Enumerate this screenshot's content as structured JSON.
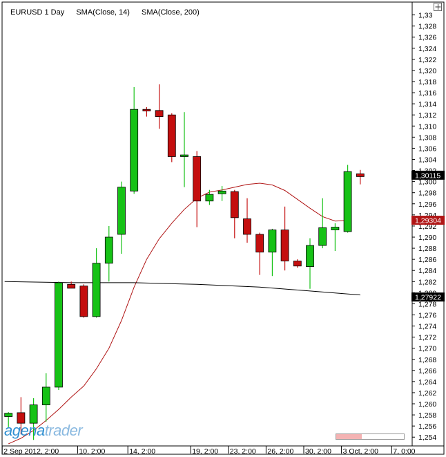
{
  "legend": {
    "instrument": "EURUSD 1 Day",
    "indicator1": "SMA(Close, 14)",
    "indicator2": "SMA(Close, 200)"
  },
  "logo": {
    "part1": "agena",
    "part2": "trader"
  },
  "scrollbar": {
    "position": 0.38
  },
  "colors": {
    "up": "#16c216",
    "down": "#c40e0e",
    "sma14": "#b01515",
    "sma200": "#000000",
    "grid": "#d9d9d9",
    "axis": "#000000"
  },
  "chart_data": {
    "type": "candlestick",
    "ylim": [
      1.2525,
      1.3305
    ],
    "y_ticks": [
      "1,254",
      "1,256",
      "1,258",
      "1,260",
      "1,262",
      "1,264",
      "1,266",
      "1,268",
      "1,270",
      "1,272",
      "1,274",
      "1,276",
      "1,278",
      "1,280",
      "1,282",
      "1,284",
      "1,286",
      "1,288",
      "1,290",
      "1,292",
      "1,294",
      "1,296",
      "1,298",
      "1,300",
      "1,302",
      "1,304",
      "1,306",
      "1,308",
      "1,310",
      "1,312",
      "1,314",
      "1,316",
      "1,318",
      "1,320",
      "1,322",
      "1,324",
      "1,326",
      "1,328",
      "1,33"
    ],
    "x_ticks": [
      {
        "index": 0,
        "label": "2 Sep 2012, 2:00"
      },
      {
        "index": 6,
        "label": "10, 2:00"
      },
      {
        "index": 10,
        "label": "14, 2:00"
      },
      {
        "index": 15,
        "label": "19, 2:00"
      },
      {
        "index": 18,
        "label": "23, 2:00"
      },
      {
        "index": 21,
        "label": "26, 2:00"
      },
      {
        "index": 24,
        "label": "30, 2:00"
      },
      {
        "index": 27,
        "label": "3 Oct, 2:00"
      },
      {
        "index": 31,
        "label": "7, 0:00"
      }
    ],
    "candles": [
      {
        "o": 1.2577,
        "h": 1.2585,
        "l": 1.2558,
        "c": 1.2583
      },
      {
        "o": 1.2584,
        "h": 1.2612,
        "l": 1.2545,
        "c": 1.2565
      },
      {
        "o": 1.2565,
        "h": 1.261,
        "l": 1.2535,
        "c": 1.2598
      },
      {
        "o": 1.2598,
        "h": 1.2655,
        "l": 1.2568,
        "c": 1.263
      },
      {
        "o": 1.263,
        "h": 1.282,
        "l": 1.2625,
        "c": 1.2818
      },
      {
        "o": 1.2815,
        "h": 1.282,
        "l": 1.2808,
        "c": 1.2808
      },
      {
        "o": 1.2812,
        "h": 1.2815,
        "l": 1.2755,
        "c": 1.2757
      },
      {
        "o": 1.2757,
        "h": 1.288,
        "l": 1.2755,
        "c": 1.2853
      },
      {
        "o": 1.2853,
        "h": 1.292,
        "l": 1.282,
        "c": 1.29
      },
      {
        "o": 1.2905,
        "h": 1.3,
        "l": 1.287,
        "c": 1.299
      },
      {
        "o": 1.2983,
        "h": 1.317,
        "l": 1.2978,
        "c": 1.313
      },
      {
        "o": 1.313,
        "h": 1.3134,
        "l": 1.3117,
        "c": 1.3127
      },
      {
        "o": 1.3128,
        "h": 1.3175,
        "l": 1.3095,
        "c": 1.3117
      },
      {
        "o": 1.312,
        "h": 1.3123,
        "l": 1.3035,
        "c": 1.3045
      },
      {
        "o": 1.3045,
        "h": 1.3125,
        "l": 1.299,
        "c": 1.3048
      },
      {
        "o": 1.3045,
        "h": 1.3055,
        "l": 1.2918,
        "c": 1.2965
      },
      {
        "o": 1.2965,
        "h": 1.2985,
        "l": 1.2958,
        "c": 1.2977
      },
      {
        "o": 1.2978,
        "h": 1.2992,
        "l": 1.2965,
        "c": 1.2983
      },
      {
        "o": 1.2982,
        "h": 1.2985,
        "l": 1.2898,
        "c": 1.2935
      },
      {
        "o": 1.2933,
        "h": 1.297,
        "l": 1.289,
        "c": 1.2905
      },
      {
        "o": 1.2905,
        "h": 1.2908,
        "l": 1.2832,
        "c": 1.2873
      },
      {
        "o": 1.2873,
        "h": 1.2915,
        "l": 1.283,
        "c": 1.2913
      },
      {
        "o": 1.2913,
        "h": 1.2955,
        "l": 1.284,
        "c": 1.2857
      },
      {
        "o": 1.2857,
        "h": 1.286,
        "l": 1.2845,
        "c": 1.2848
      },
      {
        "o": 1.2847,
        "h": 1.2898,
        "l": 1.2807,
        "c": 1.2885
      },
      {
        "o": 1.2885,
        "h": 1.297,
        "l": 1.288,
        "c": 1.2917
      },
      {
        "o": 1.2913,
        "h": 1.2925,
        "l": 1.2875,
        "c": 1.2918
      },
      {
        "o": 1.291,
        "h": 1.303,
        "l": 1.2908,
        "c": 1.3018
      },
      {
        "o": 1.3014,
        "h": 1.3021,
        "l": 1.2995,
        "c": 1.3009
      }
    ],
    "series": [
      {
        "name": "SMA(Close, 14)",
        "x": [
          0,
          1,
          2,
          3,
          4,
          5,
          6,
          7,
          8,
          9,
          10,
          11,
          12,
          13,
          14,
          15,
          16,
          17,
          18,
          19,
          20,
          21,
          22,
          23,
          24,
          25,
          26,
          27
        ],
        "values": [
          1.2528,
          1.2538,
          1.2552,
          1.257,
          1.259,
          1.2612,
          1.2632,
          1.2663,
          1.27,
          1.275,
          1.281,
          1.286,
          1.2897,
          1.2925,
          1.295,
          1.297,
          1.2981,
          1.2985,
          1.299,
          1.2995,
          1.2997,
          1.2994,
          1.2984,
          1.2968,
          1.2952,
          1.2937,
          1.2929,
          1.293
        ]
      },
      {
        "name": "SMA(Close, 200)",
        "x": [
          -0.3,
          5,
          10,
          15,
          20,
          24,
          28
        ],
        "values": [
          1.282,
          1.2818,
          1.2818,
          1.2815,
          1.281,
          1.2803,
          1.2796
        ]
      }
    ],
    "price_labels": [
      {
        "text": "1,30115",
        "value": 1.30115,
        "bg": "#000000",
        "fg": "#ffffff"
      },
      {
        "text": "1,29304",
        "value": 1.29304,
        "bg": "#b01515",
        "fg": "#ffffff"
      },
      {
        "text": "1,27922",
        "value": 1.27922,
        "bg": "#000000",
        "fg": "#ffffff"
      }
    ]
  }
}
